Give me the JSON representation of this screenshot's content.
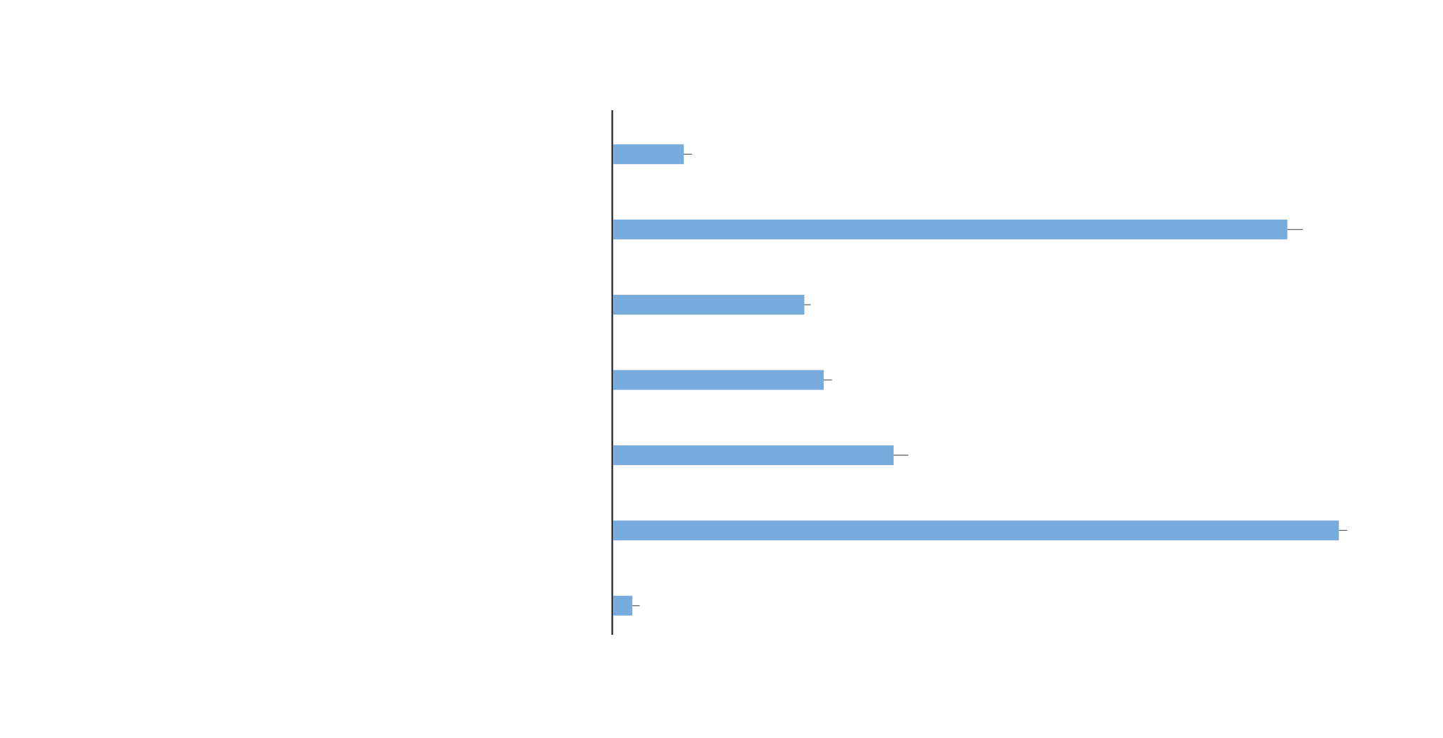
{
  "chart_data": {
    "type": "bar",
    "orientation": "horizontal",
    "values": [
      7.7,
      73.3,
      20.8,
      22.9,
      30.5,
      78.9,
      2.1
    ],
    "errors": [
      0.9,
      1.7,
      0.7,
      0.9,
      1.6,
      0.9,
      0.8
    ],
    "color": "#77abdc",
    "error_color": "#666666",
    "xlim": [
      0,
      80
    ]
  }
}
